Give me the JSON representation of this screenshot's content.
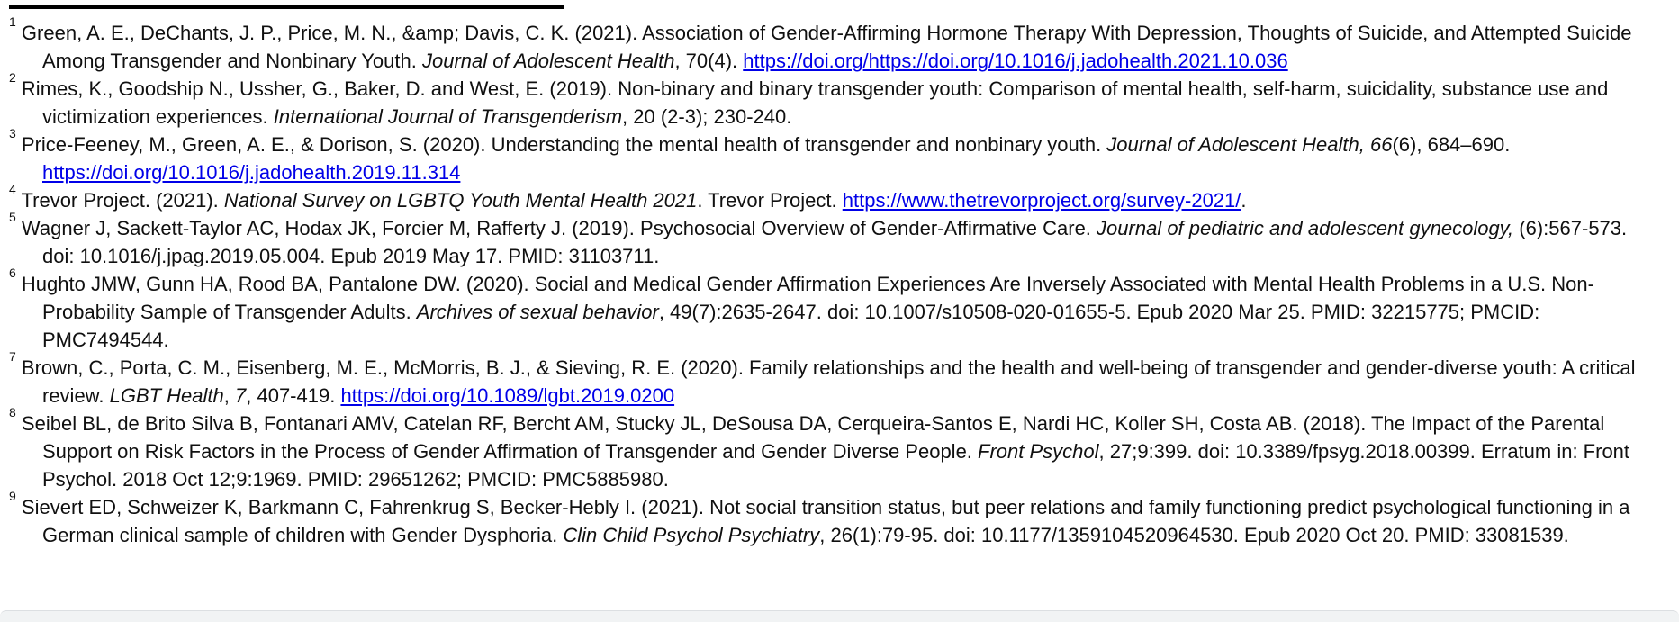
{
  "page": {
    "background": "#ffffff",
    "text_color": "#101010",
    "link_color": "#0000e8",
    "separator_color": "#000000"
  },
  "references": [
    {
      "number": "1",
      "segments": [
        {
          "t": "Green, A. E., DeChants, J. P., Price, M. N., &amp; Davis, C. K. (2021). Association of Gender-Affirming Hormone Therapy With Depression, Thoughts of Suicide, and Attempted Suicide Among Transgender and Nonbinary Youth. "
        },
        {
          "t": "Journal of Adolescent Health",
          "style": "italic"
        },
        {
          "t": ", 70(4). "
        },
        {
          "t": "https://doi.org/https://doi.org/10.1016/j.jadohealth.2021.10.036",
          "style": "link"
        }
      ]
    },
    {
      "number": "2",
      "segments": [
        {
          "t": "Rimes, K., Goodship N., Ussher, G., Baker, D. and West, E. (2019).  Non-binary and binary transgender youth: Comparison of mental health, self-harm, suicidality, substance use and victimization experiences. "
        },
        {
          "t": "International Journal of Transgenderism",
          "style": "italic"
        },
        {
          "t": ", 20 (2-3); 230-240."
        }
      ]
    },
    {
      "number": "3",
      "segments": [
        {
          "t": "Price-Feeney, M., Green, A. E., & Dorison, S. (2020). Understanding the mental health of transgender and nonbinary youth. "
        },
        {
          "t": "Journal of Adolescent Health, 66",
          "style": "italic"
        },
        {
          "t": "(6), 684–690. "
        },
        {
          "t": "https://doi.org/10.1016/j.jadohealth.2019.11.314",
          "style": "link"
        }
      ]
    },
    {
      "number": "4",
      "segments": [
        {
          "t": "Trevor Project. (2021). "
        },
        {
          "t": "National Survey on LGBTQ Youth Mental Health 2021",
          "style": "italic"
        },
        {
          "t": ". Trevor Project. "
        },
        {
          "t": "https://www.thetrevorproject.org/survey-2021/",
          "style": "link"
        },
        {
          "t": "."
        }
      ]
    },
    {
      "number": "5",
      "segments": [
        {
          "t": "Wagner J, Sackett-Taylor AC, Hodax JK, Forcier M, Rafferty J. (2019). Psychosocial Overview of Gender-Affirmative Care. "
        },
        {
          "t": "Journal of pediatric and adolescent gynecology,",
          "style": "italic"
        },
        {
          "t": " (6):567-573. doi: 10.1016/j.jpag.2019.05.004. Epub 2019 May 17. PMID: 31103711."
        }
      ]
    },
    {
      "number": "6",
      "segments": [
        {
          "t": "Hughto JMW, Gunn HA, Rood BA, Pantalone DW. (2020). Social and Medical Gender Affirmation Experiences Are Inversely Associated with Mental Health Problems in a U.S. Non-Probability Sample of Transgender Adults. "
        },
        {
          "t": "Archives of sexual behavior",
          "style": "italic"
        },
        {
          "t": ", 49(7):2635-2647. doi: 10.1007/s10508-020-01655-5. Epub 2020 Mar 25. PMID: 32215775; PMCID: PMC7494544."
        }
      ]
    },
    {
      "number": "7",
      "segments": [
        {
          "t": "Brown, C., Porta, C. M., Eisenberg, M. E., McMorris, B. J., & Sieving, R. E. (2020). Family relationships and the health and well-being of transgender and gender-diverse youth: A critical review. "
        },
        {
          "t": "LGBT Health",
          "style": "italic"
        },
        {
          "t": ", "
        },
        {
          "t": "7",
          "style": "italic"
        },
        {
          "t": ", 407-419. "
        },
        {
          "t": "https://doi.org/10.1089/lgbt.2019.0200",
          "style": "link"
        }
      ]
    },
    {
      "number": "8",
      "segments": [
        {
          "t": "Seibel BL, de Brito Silva B, Fontanari AMV, Catelan RF, Bercht AM, Stucky JL, DeSousa DA, Cerqueira-Santos E, Nardi HC, Koller SH, Costa AB. (2018). The Impact of the Parental Support on Risk Factors in the Process of Gender Affirmation of Transgender and Gender Diverse People. "
        },
        {
          "t": "Front Psychol",
          "style": "italic"
        },
        {
          "t": ", 27;9:399. doi: 10.3389/fpsyg.2018.00399. Erratum in: Front Psychol. 2018 Oct 12;9:1969. PMID: 29651262; PMCID: PMC5885980."
        }
      ]
    },
    {
      "number": "9",
      "segments": [
        {
          "t": "Sievert ED, Schweizer K, Barkmann C, Fahrenkrug S, Becker-Hebly I. (2021). Not social transition status, but peer relations and family functioning predict psychological functioning in a German clinical sample of children with Gender Dysphoria. "
        },
        {
          "t": "Clin Child Psychol Psychiatry",
          "style": "italic"
        },
        {
          "t": ", 26(1):79-95. doi: 10.1177/1359104520964530. Epub 2020 Oct 20. PMID: 33081539."
        }
      ]
    }
  ]
}
